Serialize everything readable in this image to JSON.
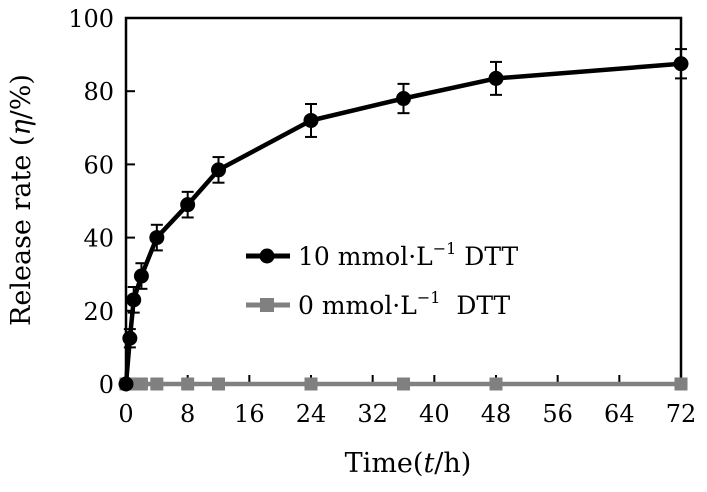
{
  "chart_data": {
    "type": "line",
    "xlabel_prefix": "Time(",
    "xlabel_var": "t",
    "xlabel_suffix": "/h)",
    "ylabel_prefix": "Release rate (",
    "ylabel_var": "η",
    "ylabel_suffix": "/%)",
    "xlim": [
      0,
      72
    ],
    "ylim": [
      0,
      100
    ],
    "xticks": [
      "0",
      "8",
      "16",
      "24",
      "32",
      "40",
      "48",
      "56",
      "64",
      "72"
    ],
    "yticks": [
      "0",
      "20",
      "40",
      "60",
      "80",
      "100"
    ],
    "grid": false,
    "legend_position": "center",
    "series": [
      {
        "name": "10 mmol·L",
        "name_sup": "−1",
        "name_tail": " DTT",
        "color": "#000000",
        "marker": "circle",
        "x": [
          0,
          0.5,
          1,
          2,
          4,
          8,
          12,
          24,
          36,
          48,
          72
        ],
        "y": [
          0,
          12.5,
          23,
          29.5,
          40,
          49,
          58.5,
          72,
          78,
          83.5,
          87.5
        ],
        "err": [
          0,
          2.5,
          3.5,
          3.5,
          3.5,
          3.5,
          3.5,
          4.5,
          4,
          4.5,
          4
        ]
      },
      {
        "name": "0 mmol·L",
        "name_sup": "−1",
        "name_tail": "  DTT",
        "color": "#808080",
        "marker": "square",
        "x": [
          0,
          1,
          2,
          4,
          8,
          12,
          24,
          36,
          48,
          72
        ],
        "y": [
          0,
          0,
          0,
          0,
          0,
          0,
          0,
          0,
          0,
          0
        ]
      }
    ]
  }
}
